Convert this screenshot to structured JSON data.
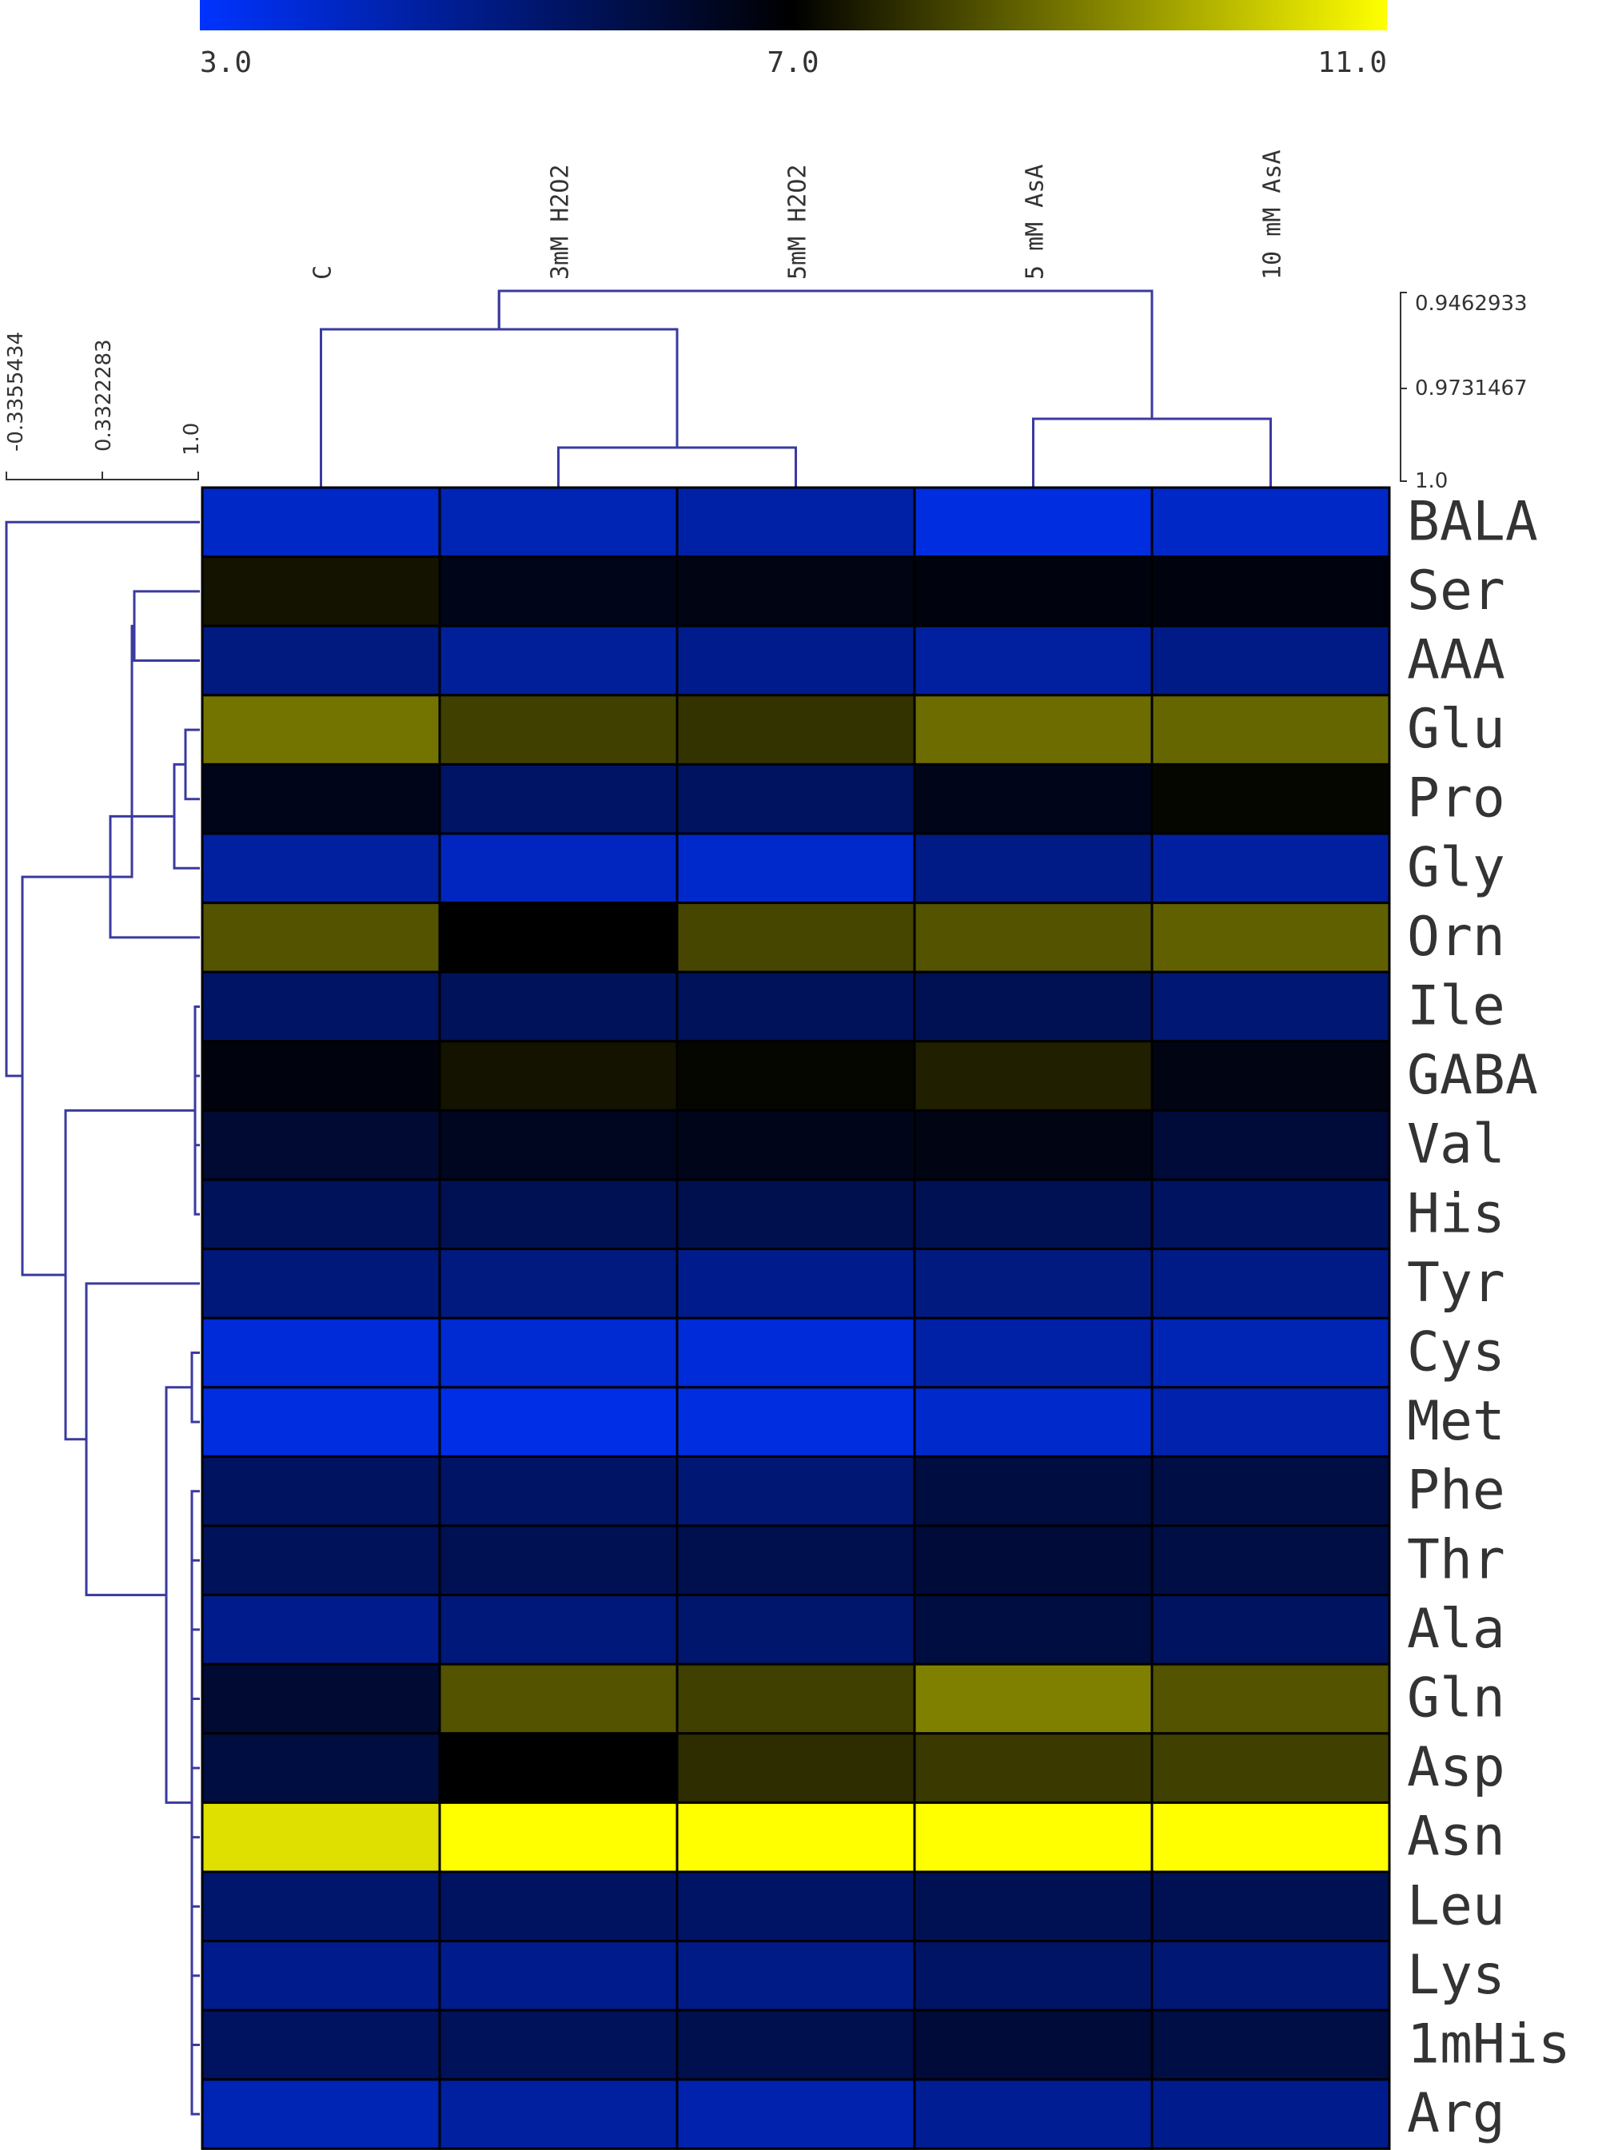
{
  "chart_data": {
    "type": "heatmap",
    "columns": [
      "C",
      "3mM H2O2",
      "5mM H2O2",
      "5 mM AsA",
      "10 mM AsA"
    ],
    "rows": [
      "BALA",
      "Ser",
      "AAA",
      "Glu",
      "Pro",
      "Gly",
      "Orn",
      "Ile",
      "GABA",
      "Val",
      "His",
      "Tyr",
      "Cys",
      "Met",
      "Phe",
      "Thr",
      "Ala",
      "Gln",
      "Asp",
      "Asn",
      "Leu",
      "Lys",
      "1mHis",
      "Arg"
    ],
    "values": [
      [
        3.9,
        4.2,
        4.4,
        3.5,
        3.9
      ],
      [
        7.3,
        6.6,
        6.7,
        6.8,
        6.8
      ],
      [
        5.0,
        4.6,
        4.8,
        4.5,
        4.9
      ],
      [
        8.8,
        8.0,
        7.8,
        8.7,
        8.6
      ],
      [
        6.6,
        5.4,
        5.5,
        6.6,
        7.1
      ],
      [
        4.5,
        4.0,
        3.8,
        4.9,
        4.5
      ],
      [
        8.3,
        7.0,
        8.1,
        8.3,
        8.5
      ],
      [
        5.4,
        5.6,
        5.6,
        5.7,
        5.2
      ],
      [
        6.8,
        7.3,
        7.1,
        7.5,
        6.7
      ],
      [
        6.2,
        6.5,
        6.6,
        6.7,
        6.1
      ],
      [
        5.6,
        5.7,
        5.8,
        5.7,
        5.5
      ],
      [
        5.1,
        5.0,
        4.8,
        5.0,
        4.9
      ],
      [
        3.6,
        3.7,
        3.6,
        4.4,
        4.2
      ],
      [
        3.5,
        3.4,
        3.5,
        3.8,
        4.3
      ],
      [
        5.5,
        5.4,
        5.2,
        6.0,
        5.9
      ],
      [
        5.6,
        5.7,
        5.8,
        6.1,
        5.9
      ],
      [
        4.8,
        5.1,
        5.3,
        6.0,
        5.5
      ],
      [
        6.2,
        8.3,
        8.0,
        9.0,
        8.3
      ],
      [
        6.0,
        7.0,
        7.7,
        7.9,
        8.0
      ],
      [
        10.5,
        11.0,
        11.0,
        11.0,
        11.0
      ],
      [
        5.3,
        5.5,
        5.4,
        5.7,
        5.7
      ],
      [
        4.8,
        4.8,
        4.9,
        5.4,
        5.2
      ],
      [
        5.5,
        5.6,
        5.8,
        6.1,
        5.9
      ],
      [
        4.2,
        4.5,
        4.3,
        4.7,
        4.8
      ]
    ],
    "color_scale": {
      "min": 3.0,
      "mid": 7.0,
      "max": 11.0,
      "min_color": "#0033ff",
      "mid_color": "#000000",
      "max_color": "#ffff00",
      "tick_labels": [
        "3.0",
        "7.0",
        "11.0"
      ]
    },
    "col_dendrogram_axis": [
      "0.9462933",
      "0.9731467",
      "1.0"
    ],
    "row_dendrogram_axis": [
      "-0.3355434",
      "0.3322283",
      "1.0"
    ],
    "dendrogram_color": "#3a3aa0"
  }
}
